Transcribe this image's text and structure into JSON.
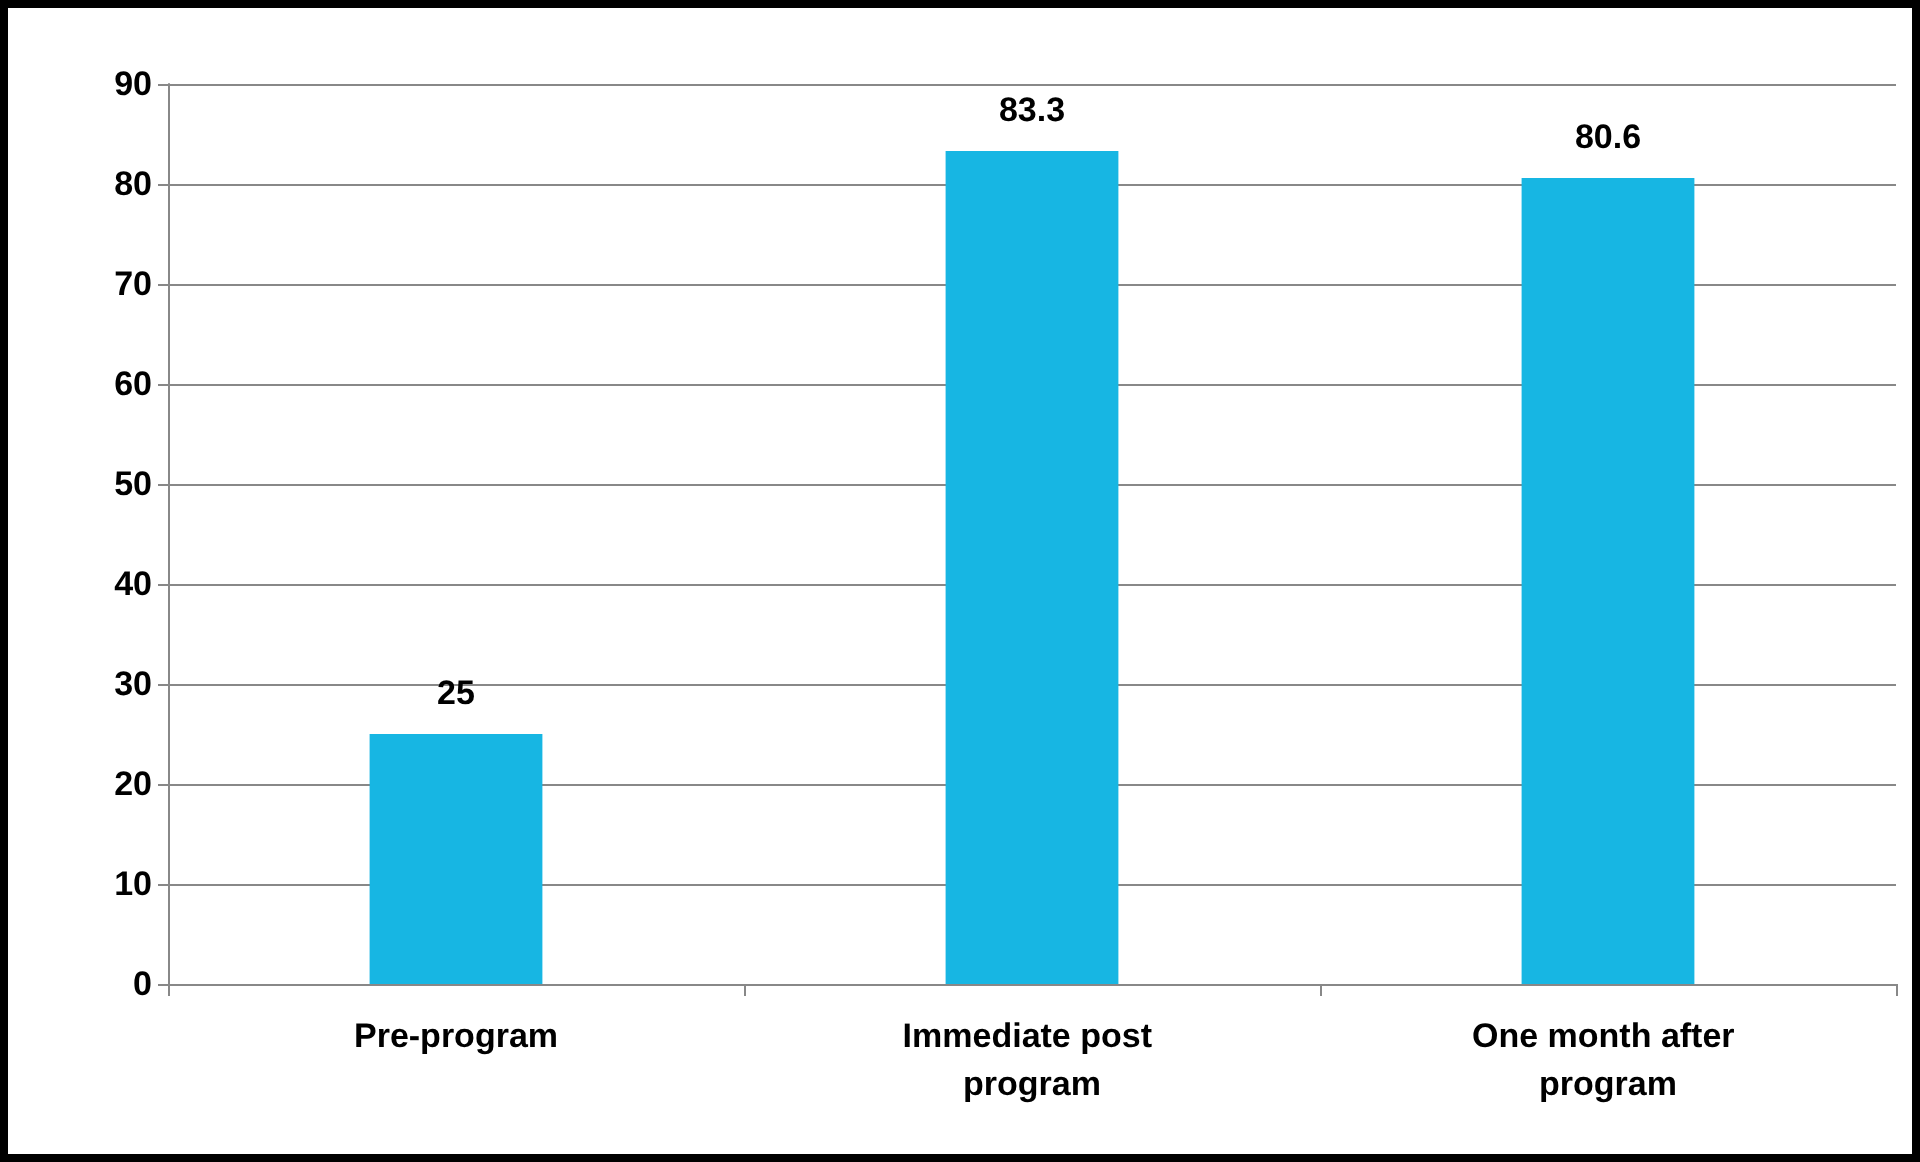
{
  "chart_data": {
    "type": "bar",
    "categories": [
      "Pre-program",
      "Immediate post program",
      "One month after program"
    ],
    "values": [
      25,
      83.3,
      80.6
    ],
    "color": "#17b6e3",
    "ylim": [
      0,
      90
    ],
    "yticks": [
      0,
      10,
      20,
      30,
      40,
      50,
      60,
      70,
      80,
      90
    ],
    "grid": "y",
    "data_labels": true
  }
}
